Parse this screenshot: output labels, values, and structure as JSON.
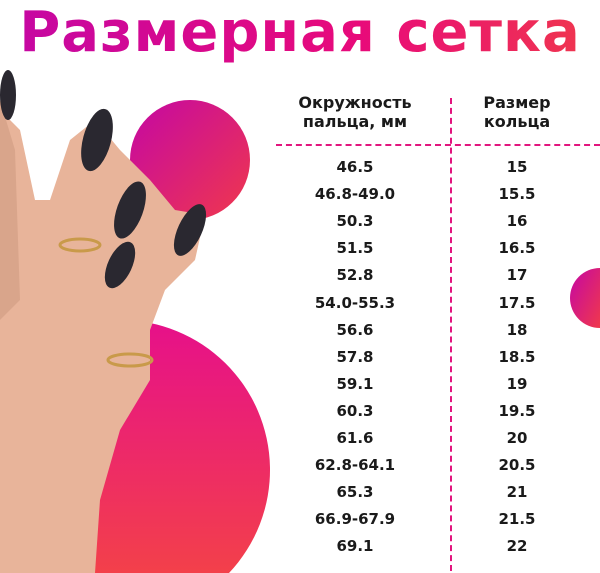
{
  "title": "Размерная сетка",
  "table": {
    "headers": [
      "Окружность\nпальца, мм",
      "Размер\nкольца"
    ],
    "rows": [
      [
        "46.5",
        "15"
      ],
      [
        "46.8-49.0",
        "15.5"
      ],
      [
        "50.3",
        "16"
      ],
      [
        "51.5",
        "16.5"
      ],
      [
        "52.8",
        "17"
      ],
      [
        "54.0-55.3",
        "17.5"
      ],
      [
        "56.6",
        "18"
      ],
      [
        "57.8",
        "18.5"
      ],
      [
        "59.1",
        "19"
      ],
      [
        "60.3",
        "19.5"
      ],
      [
        "61.6",
        "20"
      ],
      [
        "62.8-64.1",
        "20.5"
      ],
      [
        "65.3",
        "21"
      ],
      [
        "66.9-67.9",
        "21.5"
      ],
      [
        "69.1",
        "22"
      ]
    ]
  },
  "colors": {
    "accent": "#e2157e",
    "gradient_start": "#c407a4",
    "gradient_end": "#f0384c",
    "nail": "#2a2830",
    "skin": "#e8b49a"
  }
}
